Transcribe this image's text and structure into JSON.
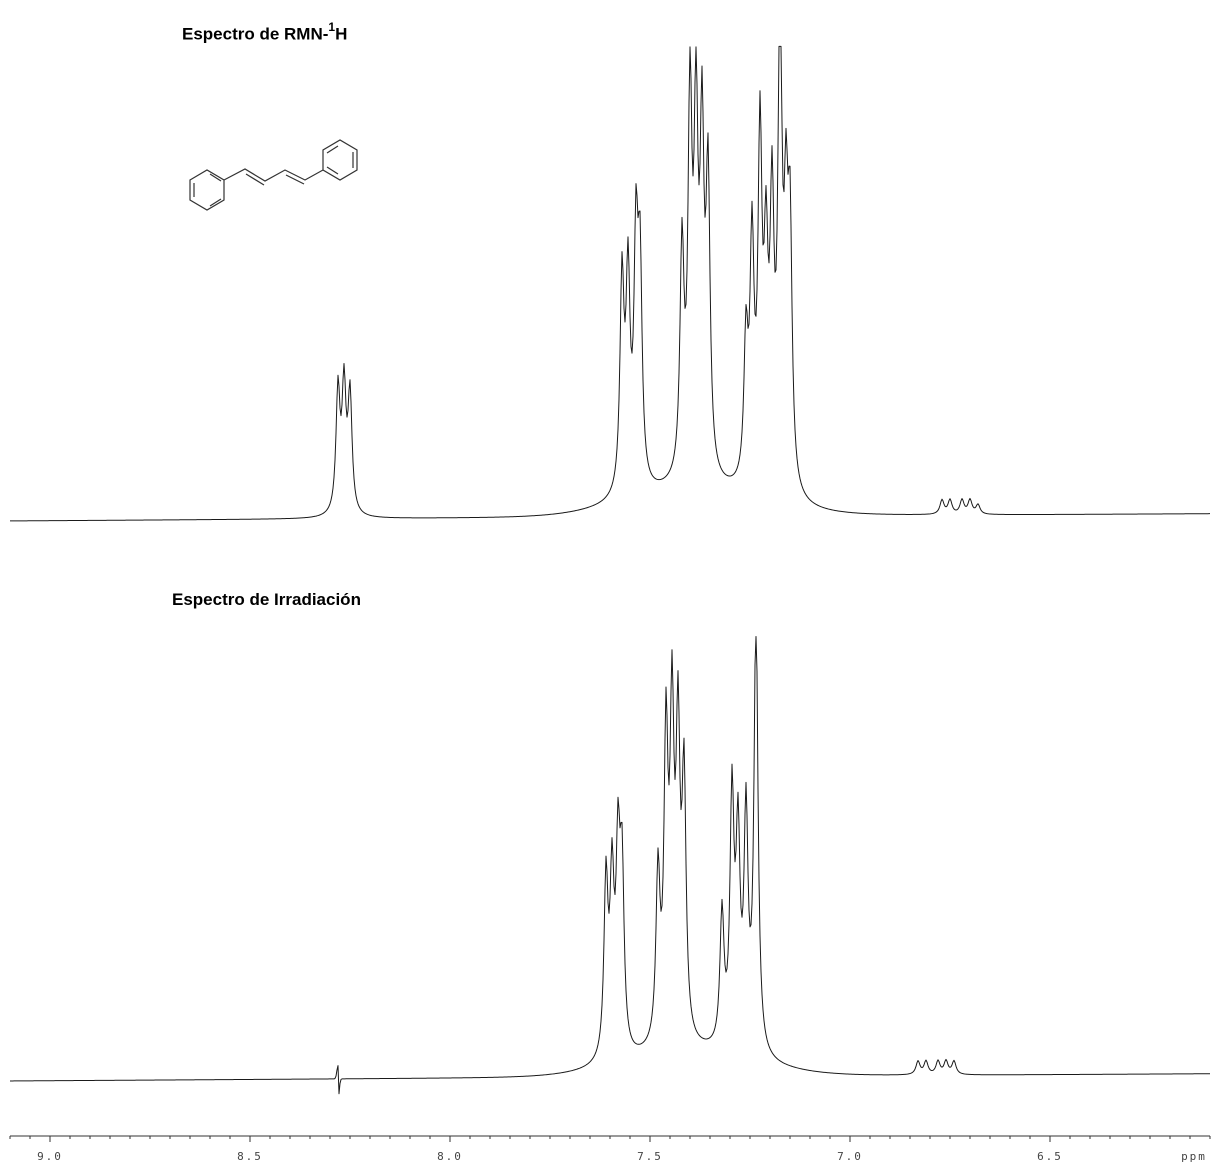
{
  "chart_data": [
    {
      "type": "line",
      "title": "Espectro de RMN-",
      "title_sup": "1",
      "title_tail": "H",
      "xaxis": {
        "range": [
          9.1,
          6.1
        ],
        "reversed": true,
        "ticks": [
          "9.0",
          "8.5",
          "8.0",
          "7.5",
          "7.0",
          "6.5"
        ],
        "unit": "ppm"
      },
      "series": [
        {
          "peaks": [
            {
              "ppm": 8.28,
              "height": 0.26
            },
            {
              "ppm": 8.265,
              "height": 0.26
            },
            {
              "ppm": 8.25,
              "height": 0.25
            },
            {
              "ppm": 7.57,
              "height": 0.45
            },
            {
              "ppm": 7.555,
              "height": 0.44
            },
            {
              "ppm": 7.535,
              "height": 0.5
            },
            {
              "ppm": 7.525,
              "height": 0.45
            },
            {
              "ppm": 7.42,
              "height": 0.48
            },
            {
              "ppm": 7.4,
              "height": 0.78
            },
            {
              "ppm": 7.385,
              "height": 0.72
            },
            {
              "ppm": 7.37,
              "height": 0.68
            },
            {
              "ppm": 7.355,
              "height": 0.62
            },
            {
              "ppm": 7.26,
              "height": 0.3
            },
            {
              "ppm": 7.245,
              "height": 0.5
            },
            {
              "ppm": 7.225,
              "height": 0.72
            },
            {
              "ppm": 7.21,
              "height": 0.44
            },
            {
              "ppm": 7.195,
              "height": 0.56
            },
            {
              "ppm": 7.175,
              "height": 1.0
            },
            {
              "ppm": 7.16,
              "height": 0.5
            },
            {
              "ppm": 7.15,
              "height": 0.52
            },
            {
              "ppm": 6.77,
              "height": 0.03
            },
            {
              "ppm": 6.75,
              "height": 0.03
            },
            {
              "ppm": 6.72,
              "height": 0.03
            },
            {
              "ppm": 6.7,
              "height": 0.03
            },
            {
              "ppm": 6.68,
              "height": 0.02
            }
          ]
        }
      ]
    },
    {
      "type": "line",
      "title": "Espectro de Irradiación",
      "xaxis": {
        "range": [
          9.1,
          6.1
        ],
        "reversed": true,
        "ticks": [
          "9.0",
          "8.5",
          "8.0",
          "7.5",
          "7.0",
          "6.5"
        ],
        "unit": "ppm"
      },
      "series": [
        {
          "peaks": [
            {
              "ppm": 7.61,
              "height": 0.4
            },
            {
              "ppm": 7.595,
              "height": 0.38
            },
            {
              "ppm": 7.58,
              "height": 0.43
            },
            {
              "ppm": 7.57,
              "height": 0.4
            },
            {
              "ppm": 7.48,
              "height": 0.38
            },
            {
              "ppm": 7.46,
              "height": 0.67
            },
            {
              "ppm": 7.445,
              "height": 0.7
            },
            {
              "ppm": 7.43,
              "height": 0.66
            },
            {
              "ppm": 7.415,
              "height": 0.58
            },
            {
              "ppm": 7.32,
              "height": 0.3
            },
            {
              "ppm": 7.295,
              "height": 0.56
            },
            {
              "ppm": 7.28,
              "height": 0.46
            },
            {
              "ppm": 7.26,
              "height": 0.52
            },
            {
              "ppm": 7.235,
              "height": 1.0
            },
            {
              "ppm": 6.83,
              "height": 0.03
            },
            {
              "ppm": 6.81,
              "height": 0.03
            },
            {
              "ppm": 6.78,
              "height": 0.03
            },
            {
              "ppm": 6.76,
              "height": 0.03
            },
            {
              "ppm": 6.74,
              "height": 0.03
            }
          ],
          "irradiated_ppm": 8.28
        }
      ]
    }
  ]
}
